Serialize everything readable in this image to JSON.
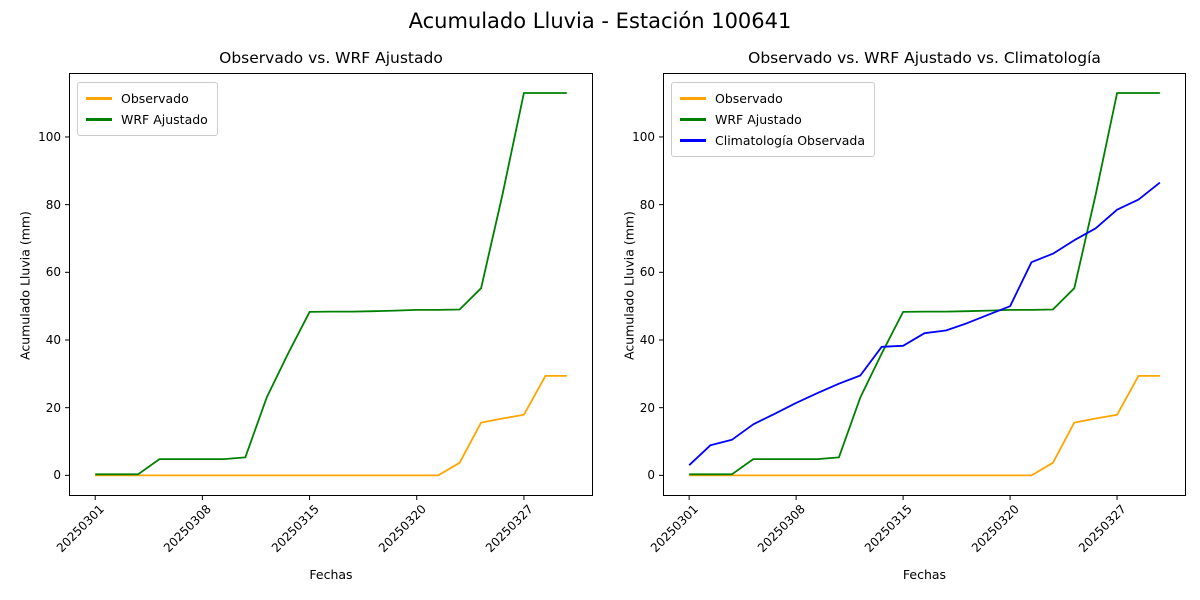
{
  "figure": {
    "suptitle": "Acumulado Lluvia - Estación 100641"
  },
  "chart_data": [
    {
      "type": "line",
      "title": "Observado vs. WRF Ajustado",
      "xlabel": "Fechas",
      "ylabel": "Acumulado Lluvia (mm)",
      "x_tick_labels": [
        "20250301",
        "20250308",
        "20250315",
        "20250320",
        "20250327"
      ],
      "x_tick_indices": [
        0,
        5,
        10,
        15,
        20
      ],
      "x_points": 23,
      "x_margin_frac": 0.05,
      "y_ticks": [
        0,
        20,
        40,
        60,
        80,
        100
      ],
      "ylim": [
        -6.1,
        118.9
      ],
      "grid": false,
      "legend_position": "upper left",
      "series": [
        {
          "name": "Observado",
          "color": "#FFA500",
          "values": [
            0,
            0,
            0,
            0,
            0,
            0,
            0,
            0,
            0,
            0,
            0,
            0,
            0,
            0,
            0,
            0,
            0,
            3.7,
            15.6,
            16.8,
            17.9,
            29.4,
            29.4
          ]
        },
        {
          "name": "WRF Ajustado",
          "color": "#008000",
          "values": [
            0.3,
            0.3,
            0.3,
            4.8,
            4.8,
            4.8,
            4.8,
            5.3,
            23,
            36,
            48.3,
            48.4,
            48.4,
            48.5,
            48.7,
            48.9,
            48.9,
            49,
            55.3,
            83,
            113,
            113,
            113
          ]
        }
      ]
    },
    {
      "type": "line",
      "title": "Observado vs. WRF Ajustado vs. Climatología",
      "xlabel": "Fechas",
      "ylabel": "Acumulado Lluvia (mm)",
      "x_tick_labels": [
        "20250301",
        "20250308",
        "20250315",
        "20250320",
        "20250327"
      ],
      "x_tick_indices": [
        0,
        5,
        10,
        15,
        20
      ],
      "x_points": 23,
      "x_margin_frac": 0.05,
      "y_ticks": [
        0,
        20,
        40,
        60,
        80,
        100
      ],
      "ylim": [
        -6.1,
        118.9
      ],
      "grid": false,
      "legend_position": "upper left",
      "series": [
        {
          "name": "Observado",
          "color": "#FFA500",
          "values": [
            0,
            0,
            0,
            0,
            0,
            0,
            0,
            0,
            0,
            0,
            0,
            0,
            0,
            0,
            0,
            0,
            0,
            3.7,
            15.6,
            16.8,
            17.9,
            29.4,
            29.4
          ]
        },
        {
          "name": "WRF Ajustado",
          "color": "#008000",
          "values": [
            0.3,
            0.3,
            0.3,
            4.8,
            4.8,
            4.8,
            4.8,
            5.3,
            23,
            36,
            48.3,
            48.4,
            48.4,
            48.5,
            48.7,
            48.9,
            48.9,
            49,
            55.3,
            83,
            113,
            113,
            113
          ]
        },
        {
          "name": "Climatología Observada",
          "color": "#0000FF",
          "values": [
            3,
            8.9,
            10.5,
            15.1,
            18.2,
            21.4,
            24.3,
            27.1,
            29.5,
            38,
            38.3,
            42,
            42.8,
            45,
            47.5,
            50,
            63,
            65.5,
            69.5,
            73,
            78.5,
            81.5,
            86.5
          ]
        }
      ]
    }
  ]
}
